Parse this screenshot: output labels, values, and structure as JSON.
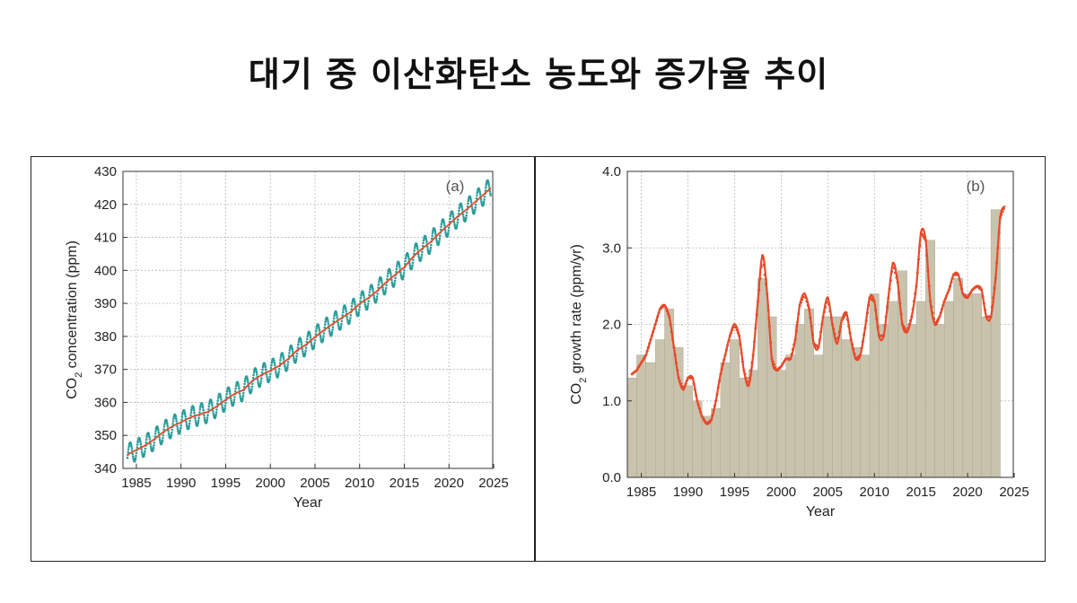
{
  "page": {
    "title": "대기 중 이산화탄소 농도와 증가율 추이"
  },
  "colors": {
    "monthly": "#2a9d9a",
    "trend": "#e64a2a",
    "bars": "#c9c3ad",
    "bar_edge": "#a6a08a",
    "grid": "#b9b9b9"
  },
  "chart_data": [
    {
      "type": "line",
      "panel_label": "(a)",
      "xlabel": "Year",
      "ylabel_main": "CO",
      "ylabel_sub": "2",
      "ylabel_rest": " concentration (ppm)",
      "xlim": [
        1983.5,
        2024.9
      ],
      "ylim": [
        340,
        430
      ],
      "x_ticks": [
        1985,
        1990,
        1995,
        2000,
        2005,
        2010,
        2015,
        2020,
        2025
      ],
      "y_ticks": [
        340,
        350,
        360,
        370,
        380,
        390,
        400,
        410,
        420,
        430
      ],
      "grid": "on",
      "series": [
        {
          "name": "",
          "style": "dotted seasonal monthly values",
          "seasonal_amplitude_ppm": 3.2
        },
        {
          "name": "",
          "style": "smoothed trend line",
          "x": [
            1984,
            1985,
            1986,
            1987,
            1988,
            1989,
            1990,
            1991,
            1992,
            1993,
            1994,
            1995,
            1996,
            1997,
            1998,
            1999,
            2000,
            2001,
            2002,
            2003,
            2004,
            2005,
            2006,
            2007,
            2008,
            2009,
            2010,
            2011,
            2012,
            2013,
            2014,
            2015,
            2016,
            2017,
            2018,
            2019,
            2020,
            2021,
            2022,
            2023,
            2024.7
          ],
          "values": [
            344.2,
            345.6,
            347.0,
            348.8,
            351.0,
            352.7,
            354.0,
            355.4,
            356.3,
            357.1,
            358.8,
            360.8,
            362.6,
            363.8,
            366.6,
            368.3,
            369.6,
            371.1,
            373.2,
            375.8,
            377.5,
            379.8,
            381.9,
            383.8,
            385.6,
            387.4,
            389.9,
            391.7,
            393.9,
            396.5,
            398.7,
            401.0,
            404.2,
            406.6,
            408.7,
            411.5,
            413.9,
            416.4,
            418.5,
            420.9,
            425.0
          ]
        }
      ]
    },
    {
      "type": "bar",
      "panel_label": "(b)",
      "xlabel": "Year",
      "ylabel_main": "CO",
      "ylabel_sub": "2",
      "ylabel_rest": " growth rate (ppm/yr)",
      "xlim": [
        1983.5,
        2024.9
      ],
      "ylim": [
        0,
        4.0
      ],
      "x_ticks": [
        1985,
        1990,
        1995,
        2000,
        2005,
        2010,
        2015,
        2020,
        2025
      ],
      "y_ticks": [
        "0.0",
        "1.0",
        "2.0",
        "3.0",
        "4.0"
      ],
      "grid": "on",
      "categories": [
        1984,
        1985,
        1986,
        1987,
        1988,
        1989,
        1990,
        1991,
        1992,
        1993,
        1994,
        1995,
        1996,
        1997,
        1998,
        1999,
        2000,
        2001,
        2002,
        2003,
        2004,
        2005,
        2006,
        2007,
        2008,
        2009,
        2010,
        2011,
        2012,
        2013,
        2014,
        2015,
        2016,
        2017,
        2018,
        2019,
        2020,
        2021,
        2022,
        2023
      ],
      "values": [
        1.3,
        1.6,
        1.5,
        1.8,
        2.2,
        1.7,
        1.2,
        1.0,
        0.8,
        0.9,
        1.5,
        1.8,
        1.3,
        1.4,
        2.6,
        2.1,
        1.4,
        1.6,
        2.0,
        2.2,
        1.6,
        2.1,
        2.1,
        1.8,
        1.7,
        1.6,
        2.4,
        2.0,
        2.3,
        2.7,
        2.0,
        2.3,
        3.1,
        2.0,
        2.3,
        2.6,
        2.4,
        2.4,
        2.1,
        3.5
      ],
      "growth_curve": {
        "x": [
          1984.0,
          1984.5,
          1985.0,
          1985.5,
          1986.0,
          1986.5,
          1987.0,
          1987.5,
          1988.0,
          1988.5,
          1989.0,
          1989.5,
          1990.0,
          1990.5,
          1991.0,
          1991.5,
          1992.0,
          1992.5,
          1993.0,
          1993.5,
          1994.0,
          1994.5,
          1995.0,
          1995.5,
          1996.0,
          1996.5,
          1997.0,
          1997.5,
          1998.0,
          1998.5,
          1999.0,
          1999.5,
          2000.0,
          2000.5,
          2001.0,
          2001.5,
          2002.0,
          2002.5,
          2003.0,
          2003.5,
          2004.0,
          2004.5,
          2005.0,
          2005.5,
          2006.0,
          2006.5,
          2007.0,
          2007.5,
          2008.0,
          2008.5,
          2009.0,
          2009.5,
          2010.0,
          2010.5,
          2011.0,
          2011.5,
          2012.0,
          2012.5,
          2013.0,
          2013.5,
          2014.0,
          2014.5,
          2015.0,
          2015.5,
          2016.0,
          2016.5,
          2017.0,
          2017.5,
          2018.0,
          2018.5,
          2019.0,
          2019.5,
          2020.0,
          2020.5,
          2021.0,
          2021.5,
          2022.0,
          2022.5,
          2023.0,
          2023.5,
          2024.0
        ],
        "values": [
          1.35,
          1.4,
          1.5,
          1.6,
          1.8,
          2.0,
          2.2,
          2.25,
          2.1,
          1.7,
          1.3,
          1.15,
          1.3,
          1.3,
          1.0,
          0.8,
          0.7,
          0.75,
          1.0,
          1.35,
          1.6,
          1.85,
          2.0,
          1.85,
          1.4,
          1.2,
          1.6,
          2.3,
          2.9,
          2.4,
          1.55,
          1.4,
          1.45,
          1.55,
          1.55,
          1.8,
          2.25,
          2.4,
          2.2,
          1.75,
          1.7,
          2.1,
          2.35,
          2.0,
          1.75,
          2.05,
          2.15,
          1.8,
          1.55,
          1.6,
          1.95,
          2.35,
          2.3,
          1.85,
          1.85,
          2.35,
          2.8,
          2.55,
          2.0,
          1.9,
          2.1,
          2.5,
          3.2,
          3.1,
          2.3,
          2.0,
          2.1,
          2.3,
          2.45,
          2.65,
          2.65,
          2.4,
          2.35,
          2.45,
          2.5,
          2.45,
          2.1,
          2.1,
          2.6,
          3.4,
          3.55
        ]
      }
    }
  ]
}
